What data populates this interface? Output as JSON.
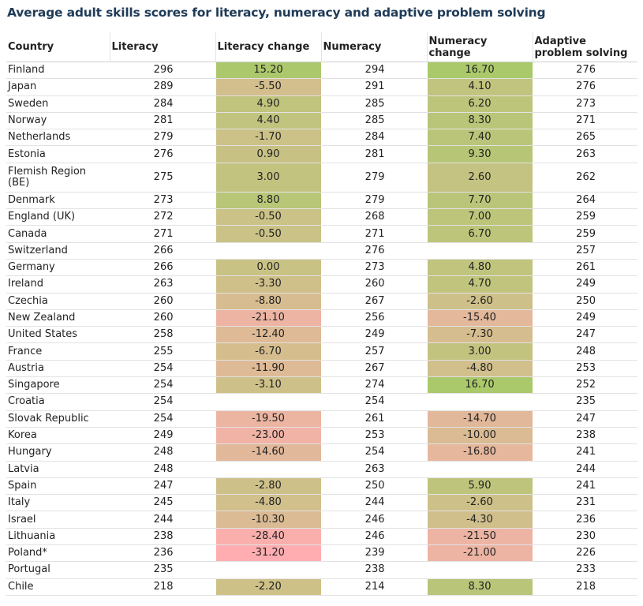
{
  "title": "Average adult skills scores for literacy, numeracy and adaptive problem solving",
  "columns": [
    "Country",
    "Literacy",
    "Literacy change",
    "Numeracy",
    "Numeracy change",
    "Adaptive problem solving"
  ],
  "chart_data": {
    "type": "table",
    "title": "Average adult skills scores for literacy, numeracy and adaptive problem solving",
    "columns": [
      "Country",
      "Literacy",
      "Literacy change",
      "Numeracy",
      "Numeracy change",
      "Adaptive problem solving"
    ],
    "rows": [
      {
        "country": "Finland",
        "literacy": "296",
        "literacy_change": "15.20",
        "numeracy": "294",
        "numeracy_change": "16.70",
        "aps": "276"
      },
      {
        "country": "Japan",
        "literacy": "289",
        "literacy_change": "-5.50",
        "numeracy": "291",
        "numeracy_change": "4.10",
        "aps": "276"
      },
      {
        "country": "Sweden",
        "literacy": "284",
        "literacy_change": "4.90",
        "numeracy": "285",
        "numeracy_change": "6.20",
        "aps": "273"
      },
      {
        "country": "Norway",
        "literacy": "281",
        "literacy_change": "4.40",
        "numeracy": "285",
        "numeracy_change": "8.30",
        "aps": "271"
      },
      {
        "country": "Netherlands",
        "literacy": "279",
        "literacy_change": "-1.70",
        "numeracy": "284",
        "numeracy_change": "7.40",
        "aps": "265"
      },
      {
        "country": "Estonia",
        "literacy": "276",
        "literacy_change": "0.90",
        "numeracy": "281",
        "numeracy_change": "9.30",
        "aps": "263"
      },
      {
        "country": "Flemish Region (BE)",
        "literacy": "275",
        "literacy_change": "3.00",
        "numeracy": "279",
        "numeracy_change": "2.60",
        "aps": "262"
      },
      {
        "country": "Denmark",
        "literacy": "273",
        "literacy_change": "8.80",
        "numeracy": "279",
        "numeracy_change": "7.70",
        "aps": "264"
      },
      {
        "country": "England (UK)",
        "literacy": "272",
        "literacy_change": "-0.50",
        "numeracy": "268",
        "numeracy_change": "7.00",
        "aps": "259"
      },
      {
        "country": "Canada",
        "literacy": "271",
        "literacy_change": "-0.50",
        "numeracy": "271",
        "numeracy_change": "6.70",
        "aps": "259"
      },
      {
        "country": "Switzerland",
        "literacy": "266",
        "literacy_change": "",
        "numeracy": "276",
        "numeracy_change": "",
        "aps": "257"
      },
      {
        "country": "Germany",
        "literacy": "266",
        "literacy_change": "0.00",
        "numeracy": "273",
        "numeracy_change": "4.80",
        "aps": "261"
      },
      {
        "country": "Ireland",
        "literacy": "263",
        "literacy_change": "-3.30",
        "numeracy": "260",
        "numeracy_change": "4.70",
        "aps": "249"
      },
      {
        "country": "Czechia",
        "literacy": "260",
        "literacy_change": "-8.80",
        "numeracy": "267",
        "numeracy_change": "-2.60",
        "aps": "250"
      },
      {
        "country": "New Zealand",
        "literacy": "260",
        "literacy_change": "-21.10",
        "numeracy": "256",
        "numeracy_change": "-15.40",
        "aps": "249"
      },
      {
        "country": "United States",
        "literacy": "258",
        "literacy_change": "-12.40",
        "numeracy": "249",
        "numeracy_change": "-7.30",
        "aps": "247"
      },
      {
        "country": "France",
        "literacy": "255",
        "literacy_change": "-6.70",
        "numeracy": "257",
        "numeracy_change": "3.00",
        "aps": "248"
      },
      {
        "country": "Austria",
        "literacy": "254",
        "literacy_change": "-11.90",
        "numeracy": "267",
        "numeracy_change": "-4.80",
        "aps": "253"
      },
      {
        "country": "Singapore",
        "literacy": "254",
        "literacy_change": "-3.10",
        "numeracy": "274",
        "numeracy_change": "16.70",
        "aps": "252"
      },
      {
        "country": "Croatia",
        "literacy": "254",
        "literacy_change": "",
        "numeracy": "254",
        "numeracy_change": "",
        "aps": "235"
      },
      {
        "country": "Slovak Republic",
        "literacy": "254",
        "literacy_change": "-19.50",
        "numeracy": "261",
        "numeracy_change": "-14.70",
        "aps": "247"
      },
      {
        "country": "Korea",
        "literacy": "249",
        "literacy_change": "-23.00",
        "numeracy": "253",
        "numeracy_change": "-10.00",
        "aps": "238"
      },
      {
        "country": "Hungary",
        "literacy": "248",
        "literacy_change": "-14.60",
        "numeracy": "254",
        "numeracy_change": "-16.80",
        "aps": "241"
      },
      {
        "country": "Latvia",
        "literacy": "248",
        "literacy_change": "",
        "numeracy": "263",
        "numeracy_change": "",
        "aps": "244"
      },
      {
        "country": "Spain",
        "literacy": "247",
        "literacy_change": "-2.80",
        "numeracy": "250",
        "numeracy_change": "5.90",
        "aps": "241"
      },
      {
        "country": "Italy",
        "literacy": "245",
        "literacy_change": "-4.80",
        "numeracy": "244",
        "numeracy_change": "-2.60",
        "aps": "231"
      },
      {
        "country": "Israel",
        "literacy": "244",
        "literacy_change": "-10.30",
        "numeracy": "246",
        "numeracy_change": "-4.30",
        "aps": "236"
      },
      {
        "country": "Lithuania",
        "literacy": "238",
        "literacy_change": "-28.40",
        "numeracy": "246",
        "numeracy_change": "-21.50",
        "aps": "230"
      },
      {
        "country": "Poland*",
        "literacy": "236",
        "literacy_change": "-31.20",
        "numeracy": "239",
        "numeracy_change": "-21.00",
        "aps": "226"
      },
      {
        "country": "Portugal",
        "literacy": "235",
        "literacy_change": "",
        "numeracy": "238",
        "numeracy_change": "",
        "aps": "233"
      },
      {
        "country": "Chile",
        "literacy": "218",
        "literacy_change": "-2.20",
        "numeracy": "214",
        "numeracy_change": "8.30",
        "aps": "218"
      }
    ],
    "color_scale": {
      "min_color": "#ffadb1",
      "mid_color": "#c9c285",
      "max_color": "#a9c96a"
    }
  }
}
